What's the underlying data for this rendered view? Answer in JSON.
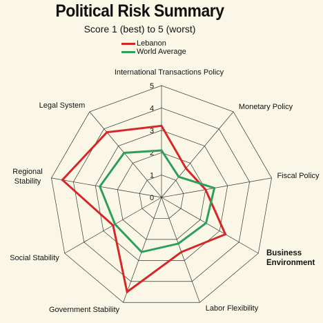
{
  "chart_data": {
    "type": "radar",
    "title": "Political Risk Summary",
    "subtitle": "Score 1 (best) to 5 (worst)",
    "categories": [
      "International Transactions Policy",
      "Monetary Policy",
      "Fiscal Policy",
      "Business Environment",
      "Labor Flexibility",
      "Government Stability",
      "Social Stability",
      "Regional Stability",
      "Legal System"
    ],
    "category_label_lines": [
      [
        "International Transactions Policy"
      ],
      [
        "Monetary Policy"
      ],
      [
        "Fiscal Policy"
      ],
      [
        "Business",
        "Environment"
      ],
      [
        "Labor Flexibility"
      ],
      [
        "Government Stability"
      ],
      [
        "Social Stability"
      ],
      [
        "Regional",
        "Stability"
      ],
      [
        "Legal System"
      ]
    ],
    "highlighted_categories": [
      "Business Environment"
    ],
    "rlim": [
      0,
      5
    ],
    "ticks": [
      0,
      1,
      2,
      3,
      4,
      5
    ],
    "grid": true,
    "legend_position": "top",
    "series": [
      {
        "name": "Lebanon",
        "color": "#d62728",
        "values": [
          3.2,
          1.7,
          2.0,
          3.3,
          2.6,
          4.5,
          2.5,
          4.5,
          3.8
        ]
      },
      {
        "name": "World Average",
        "color": "#2e9e5b",
        "values": [
          2.1,
          1.2,
          2.4,
          2.3,
          2.2,
          2.6,
          2.4,
          2.8,
          2.6
        ]
      }
    ]
  }
}
